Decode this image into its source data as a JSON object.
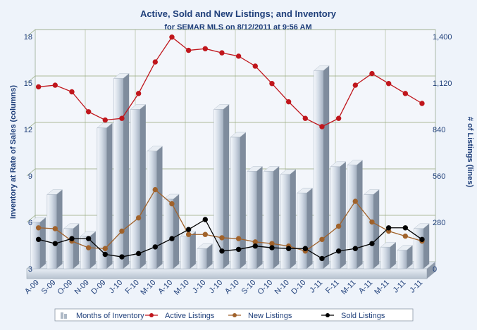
{
  "chart_data": {
    "type": "bar",
    "title": "Active, Sold and New Listings; and Inventory",
    "subtitle": "for SEMAR MLS on 8/12/2011 at 9:56 AM",
    "ylabel": "Inventory at Rate of Sales (columns)",
    "y2label": "# of Listings (lines)",
    "ylim": [
      3,
      18
    ],
    "y2lim": [
      0,
      1400
    ],
    "yticks": [
      3,
      6,
      9,
      12,
      15,
      18
    ],
    "y2ticks": [
      "0",
      "280",
      "560",
      "840",
      "1,120",
      "1,400"
    ],
    "grid": true,
    "legend_position": "bottom",
    "categories": [
      "A-09",
      "S-09",
      "O-09",
      "N-09",
      "D-09",
      "J-10",
      "F-10",
      "M-10",
      "A-10",
      "M-10",
      "J-10",
      "J-10",
      "A-10",
      "S-10",
      "O-10",
      "N-10",
      "D-10",
      "J-11",
      "F-11",
      "M-11",
      "A-11",
      "M-11",
      "J-11",
      "J-11"
    ],
    "series": [
      {
        "name": "Months of Inventory",
        "kind": "bar",
        "axis": "left",
        "color": "#c8d3df",
        "values": [
          6.0,
          7.8,
          5.6,
          5.1,
          12.1,
          15.3,
          13.3,
          10.6,
          7.5,
          5.1,
          4.3,
          13.3,
          11.5,
          9.3,
          9.3,
          9.1,
          7.9,
          15.8,
          9.6,
          9.7,
          7.8,
          4.4,
          4.2,
          5.6
        ]
      },
      {
        "name": "Active Listings",
        "kind": "line",
        "axis": "right",
        "color": "#c0161c",
        "values": [
          1080,
          1090,
          1050,
          930,
          880,
          890,
          1040,
          1230,
          1380,
          1300,
          1310,
          1285,
          1265,
          1205,
          1100,
          990,
          890,
          840,
          890,
          1090,
          1160,
          1100,
          1040,
          980
        ]
      },
      {
        "name": "New Listings",
        "kind": "line",
        "axis": "right",
        "color": "#a0622b",
        "values": [
          230,
          225,
          150,
          110,
          105,
          210,
          290,
          460,
          375,
          190,
          190,
          170,
          165,
          145,
          135,
          120,
          90,
          160,
          240,
          390,
          265,
          210,
          180,
          150
        ]
      },
      {
        "name": "Sold Listings",
        "kind": "line",
        "axis": "right",
        "color": "#000000",
        "values": [
          160,
          135,
          165,
          165,
          70,
          55,
          75,
          115,
          165,
          220,
          280,
          90,
          100,
          120,
          110,
          105,
          105,
          45,
          90,
          105,
          135,
          230,
          230,
          160
        ]
      }
    ]
  }
}
